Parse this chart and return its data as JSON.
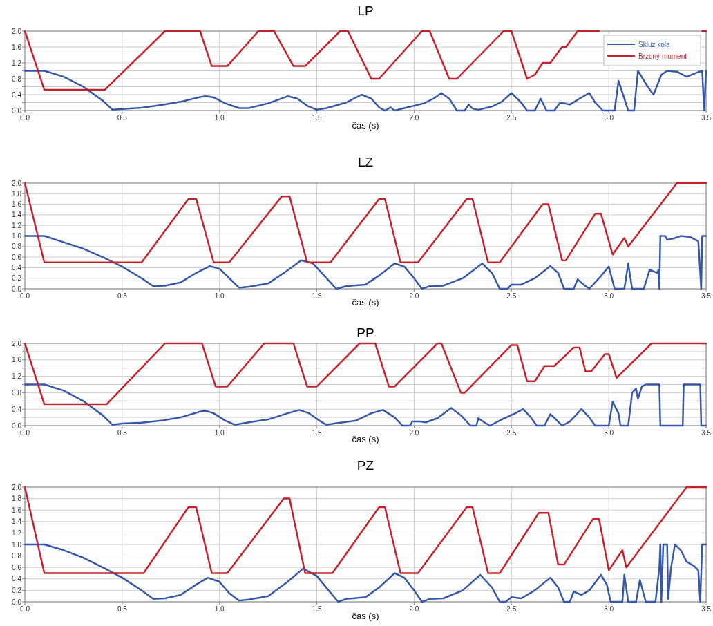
{
  "chart_data": [
    {
      "type": "line",
      "title": "LP",
      "xlabel": "čas (s)",
      "xlim": [
        0,
        3.5
      ],
      "xticks": [
        {
          "value": 0,
          "label": "0.0"
        },
        {
          "value": 0.5,
          "label": "0.5"
        },
        {
          "value": 1,
          "label": "1.0"
        },
        {
          "value": 1.5,
          "label": "1.5"
        },
        {
          "value": 2,
          "label": "2.0"
        },
        {
          "value": 2.5,
          "label": "2.5"
        },
        {
          "value": 3,
          "label": "3.0"
        },
        {
          "value": 3.5,
          "label": "3.5"
        }
      ],
      "ylim": [
        0,
        2
      ],
      "yticks": [
        {
          "value": 0,
          "label": "0.0"
        },
        {
          "value": 0.2,
          "label": null
        },
        {
          "value": 0.4,
          "label": "0.4"
        },
        {
          "value": 0.6,
          "label": null
        },
        {
          "value": 0.8,
          "label": "0.8"
        },
        {
          "value": 1,
          "label": null
        },
        {
          "value": 1.2,
          "label": "1.2"
        },
        {
          "value": 1.4,
          "label": null
        },
        {
          "value": 1.6,
          "label": "1.6"
        },
        {
          "value": 1.8,
          "label": null
        },
        {
          "value": 2,
          "label": "2.0"
        }
      ],
      "grid": true,
      "legend": "top right",
      "series": [
        {
          "name": "Skluz kola",
          "color": "#3558a8",
          "x": [
            0,
            0.1,
            0.2,
            0.3,
            0.4,
            0.45,
            0.5,
            0.6,
            0.7,
            0.8,
            0.9,
            0.93,
            0.97,
            1.03,
            1.1,
            1.15,
            1.25,
            1.35,
            1.4,
            1.45,
            1.5,
            1.55,
            1.65,
            1.73,
            1.78,
            1.82,
            1.85,
            1.88,
            1.9,
            1.95,
            2.05,
            2.1,
            2.14,
            2.18,
            2.22,
            2.26,
            2.28,
            2.3,
            2.33,
            2.4,
            2.45,
            2.5,
            2.55,
            2.58,
            2.62,
            2.65,
            2.68,
            2.72,
            2.75,
            2.8,
            2.85,
            2.9,
            2.93,
            2.97,
            3.03,
            3.05,
            3.08,
            3.1,
            3.13,
            3.15,
            3.2,
            3.23,
            3.27,
            3.3,
            3.35,
            3.4,
            3.45,
            3.48,
            3.49,
            3.5
          ],
          "values": [
            1,
            1,
            0.85,
            0.6,
            0.25,
            0.02,
            0.04,
            0.07,
            0.14,
            0.22,
            0.34,
            0.36,
            0.33,
            0.18,
            0.06,
            0.06,
            0.18,
            0.36,
            0.3,
            0.12,
            0.02,
            0.06,
            0.2,
            0.4,
            0.3,
            0.08,
            0,
            0.08,
            0,
            0.06,
            0.18,
            0.3,
            0.44,
            0.3,
            0,
            0,
            0.15,
            0.05,
            0.02,
            0.1,
            0.22,
            0.44,
            0.2,
            0,
            0,
            0.3,
            0,
            0,
            0.2,
            0.15,
            0.3,
            0.44,
            0.2,
            0,
            0,
            0.75,
            0.3,
            0,
            0,
            1,
            0.6,
            0.4,
            0.9,
            1,
            0.98,
            0.85,
            0.95,
            1,
            0,
            1
          ]
        },
        {
          "name": "Brzdný moment",
          "color": "#c8202a",
          "x": [
            0,
            0.1,
            0.41,
            0.72,
            0.9,
            0.96,
            1.04,
            1.2,
            1.28,
            1.38,
            1.44,
            1.62,
            1.66,
            1.78,
            1.82,
            2.04,
            2.08,
            2.18,
            2.22,
            2.46,
            2.5,
            2.58,
            2.62,
            2.66,
            2.7,
            2.76,
            2.78,
            2.84,
            2.88,
            2.95,
            2.97,
            3.48,
            3.5
          ],
          "values": [
            2,
            0.52,
            0.52,
            2,
            2,
            1.12,
            1.12,
            2,
            2,
            1.12,
            1.12,
            2,
            2,
            0.8,
            0.8,
            2,
            2,
            0.8,
            0.8,
            2,
            2,
            0.8,
            0.9,
            1.2,
            1.2,
            1.6,
            1.6,
            2,
            2,
            2,
            null,
            2,
            2
          ]
        }
      ]
    },
    {
      "type": "line",
      "title": "LZ",
      "xlabel": "čas (s)",
      "xlim": [
        0,
        3.5
      ],
      "xticks": [
        {
          "value": 0,
          "label": "0.0"
        },
        {
          "value": 0.5,
          "label": "0.5"
        },
        {
          "value": 1,
          "label": "1.0"
        },
        {
          "value": 1.5,
          "label": "1.5"
        },
        {
          "value": 2,
          "label": "2.0"
        },
        {
          "value": 2.5,
          "label": "2.5"
        },
        {
          "value": 3,
          "label": "3.0"
        },
        {
          "value": 3.5,
          "label": "3.5"
        }
      ],
      "ylim": [
        0,
        2
      ],
      "yticks": [
        {
          "value": 0,
          "label": "0.0"
        },
        {
          "value": 0.2,
          "label": "0.2"
        },
        {
          "value": 0.4,
          "label": "0.4"
        },
        {
          "value": 0.6,
          "label": "0.6"
        },
        {
          "value": 0.8,
          "label": "0.8"
        },
        {
          "value": 1,
          "label": "1.0"
        },
        {
          "value": 1.2,
          "label": "1.2"
        },
        {
          "value": 1.4,
          "label": "1.4"
        },
        {
          "value": 1.6,
          "label": "1.6"
        },
        {
          "value": 1.8,
          "label": "1.8"
        },
        {
          "value": 2,
          "label": "2.0"
        }
      ],
      "grid": true,
      "series": [
        {
          "color": "#3558a8",
          "x": [
            0,
            0.1,
            0.2,
            0.3,
            0.4,
            0.5,
            0.6,
            0.66,
            0.72,
            0.8,
            0.88,
            0.95,
            1,
            1.05,
            1.1,
            1.15,
            1.25,
            1.35,
            1.42,
            1.48,
            1.55,
            1.6,
            1.65,
            1.75,
            1.82,
            1.9,
            1.95,
            2,
            2.04,
            2.08,
            2.15,
            2.25,
            2.35,
            2.4,
            2.44,
            2.48,
            2.5,
            2.55,
            2.62,
            2.7,
            2.74,
            2.77,
            2.82,
            2.84,
            2.87,
            2.9,
            2.95,
            3,
            3.03,
            3.08,
            3.1,
            3.12,
            3.18,
            3.21,
            3.25,
            3.255,
            3.26,
            3.265,
            3.29,
            3.3,
            3.33,
            3.37,
            3.42,
            3.46,
            3.475,
            3.48,
            3.5
          ],
          "values": [
            1,
            1,
            0.88,
            0.76,
            0.6,
            0.42,
            0.2,
            0.05,
            0.06,
            0.12,
            0.3,
            0.43,
            0.38,
            0.2,
            0.02,
            0.04,
            0.1,
            0.35,
            0.54,
            0.48,
            0.2,
            0,
            0.05,
            0.08,
            0.25,
            0.48,
            0.42,
            0.2,
            0,
            0.05,
            0.06,
            0.2,
            0.48,
            0.3,
            0,
            0,
            0.08,
            0.08,
            0.2,
            0.43,
            0.3,
            0,
            0,
            0.18,
            0.08,
            0,
            0.2,
            0.42,
            0,
            0,
            0.48,
            0,
            0,
            0.36,
            0.3,
            0.36,
            0,
            1,
            1,
            0.93,
            0.95,
            1,
            0.98,
            0.9,
            0,
            1,
            1
          ]
        },
        {
          "color": "#c8202a",
          "x": [
            0,
            0.1,
            0.6,
            0.84,
            0.88,
            0.97,
            1.05,
            1.32,
            1.36,
            1.45,
            1.57,
            1.82,
            1.85,
            1.93,
            2.02,
            2.27,
            2.3,
            2.38,
            2.44,
            2.66,
            2.69,
            2.76,
            2.78,
            2.93,
            2.96,
            3.02,
            3.08,
            3.1,
            3.35,
            3.5
          ],
          "values": [
            2,
            0.5,
            0.5,
            1.7,
            1.7,
            0.5,
            0.5,
            1.75,
            1.75,
            0.5,
            0.5,
            1.7,
            1.7,
            0.5,
            0.5,
            1.7,
            1.7,
            0.5,
            0.5,
            1.6,
            1.6,
            0.54,
            0.54,
            1.42,
            1.42,
            0.65,
            0.96,
            0.8,
            2,
            2
          ]
        }
      ]
    },
    {
      "type": "line",
      "title": "PP",
      "xlabel": "čas (s)",
      "xlim": [
        0,
        3.5
      ],
      "xticks": [
        {
          "value": 0,
          "label": "0.0"
        },
        {
          "value": 0.5,
          "label": "0.5"
        },
        {
          "value": 1,
          "label": "1.0"
        },
        {
          "value": 1.5,
          "label": "1.5"
        },
        {
          "value": 2,
          "label": "2.0"
        },
        {
          "value": 2.5,
          "label": "2.5"
        },
        {
          "value": 3,
          "label": "3.0"
        },
        {
          "value": 3.5,
          "label": "3.5"
        }
      ],
      "ylim": [
        0,
        2
      ],
      "yticks": [
        {
          "value": 0,
          "label": "0.0"
        },
        {
          "value": 0.2,
          "label": null
        },
        {
          "value": 0.4,
          "label": "0.4"
        },
        {
          "value": 0.6,
          "label": null
        },
        {
          "value": 0.8,
          "label": "0.8"
        },
        {
          "value": 1,
          "label": null
        },
        {
          "value": 1.2,
          "label": "1.2"
        },
        {
          "value": 1.4,
          "label": null
        },
        {
          "value": 1.6,
          "label": "1.6"
        },
        {
          "value": 1.8,
          "label": null
        },
        {
          "value": 2,
          "label": "2.0"
        }
      ],
      "grid": true,
      "series": [
        {
          "color": "#3558a8",
          "x": [
            0,
            0.1,
            0.2,
            0.3,
            0.4,
            0.45,
            0.5,
            0.6,
            0.7,
            0.8,
            0.9,
            0.93,
            0.97,
            1.03,
            1.08,
            1.15,
            1.25,
            1.35,
            1.41,
            1.46,
            1.52,
            1.55,
            1.6,
            1.7,
            1.78,
            1.84,
            1.9,
            1.94,
            1.98,
            1.99,
            2.03,
            2.06,
            2.12,
            2.19,
            2.24,
            2.29,
            2.32,
            2.33,
            2.36,
            2.39,
            2.45,
            2.52,
            2.56,
            2.6,
            2.63,
            2.67,
            2.7,
            2.74,
            2.76,
            2.8,
            2.86,
            2.9,
            2.93,
            3,
            3.02,
            3.05,
            3.06,
            3.1,
            3.12,
            3.14,
            3.15,
            3.17,
            3.19,
            3.26,
            3.265,
            3.38,
            3.385,
            3.47,
            3.475,
            3.5
          ],
          "values": [
            1,
            1,
            0.85,
            0.6,
            0.25,
            0.02,
            0.05,
            0.07,
            0.12,
            0.2,
            0.34,
            0.36,
            0.3,
            0.12,
            0.02,
            0.08,
            0.15,
            0.3,
            0.38,
            0.3,
            0.1,
            0.02,
            0.06,
            0.12,
            0.3,
            0.38,
            0.2,
            0,
            0,
            0.1,
            0.1,
            0.08,
            0.18,
            0.43,
            0.25,
            0,
            0,
            0.18,
            0.08,
            0,
            0.15,
            0.3,
            0.4,
            0.2,
            0,
            0,
            0.28,
            0.1,
            0,
            0.1,
            0.4,
            0.2,
            0,
            0,
            0.58,
            0.3,
            0,
            0,
            0.8,
            0.9,
            0.65,
            0.95,
            1,
            1,
            0,
            0,
            1,
            1,
            0,
            0
          ]
        },
        {
          "color": "#c8202a",
          "x": [
            0,
            0.1,
            0.42,
            0.72,
            0.91,
            0.98,
            1.04,
            1.23,
            1.38,
            1.45,
            1.5,
            1.72,
            1.8,
            1.87,
            1.9,
            2.12,
            2.14,
            2.24,
            2.26,
            2.5,
            2.53,
            2.58,
            2.62,
            2.67,
            2.72,
            2.82,
            2.85,
            2.88,
            2.91,
            2.98,
            3,
            3.04,
            3.22,
            3.5
          ],
          "values": [
            2,
            0.52,
            0.52,
            2,
            2,
            0.95,
            0.95,
            2,
            2,
            0.95,
            0.95,
            2,
            2,
            0.95,
            0.95,
            2,
            2,
            0.8,
            0.8,
            1.96,
            1.96,
            1.08,
            1.08,
            1.45,
            1.45,
            1.9,
            1.9,
            1.32,
            1.32,
            1.74,
            1.74,
            1.16,
            2,
            2
          ]
        }
      ]
    },
    {
      "type": "line",
      "title": "PZ",
      "xlabel": "čas (s)",
      "xlim": [
        0,
        3.5
      ],
      "xticks": [
        {
          "value": 0,
          "label": "0.0"
        },
        {
          "value": 0.5,
          "label": "0.5"
        },
        {
          "value": 1,
          "label": "1.0"
        },
        {
          "value": 1.5,
          "label": "1.5"
        },
        {
          "value": 2,
          "label": "2.0"
        },
        {
          "value": 2.5,
          "label": "2.5"
        },
        {
          "value": 3,
          "label": "3.0"
        },
        {
          "value": 3.5,
          "label": "3.5"
        }
      ],
      "ylim": [
        0,
        2
      ],
      "yticks": [
        {
          "value": 0,
          "label": "0.0"
        },
        {
          "value": 0.2,
          "label": "0.2"
        },
        {
          "value": 0.4,
          "label": "0.4"
        },
        {
          "value": 0.6,
          "label": "0.6"
        },
        {
          "value": 0.8,
          "label": "0.8"
        },
        {
          "value": 1,
          "label": "1.0"
        },
        {
          "value": 1.2,
          "label": "1.2"
        },
        {
          "value": 1.4,
          "label": "1.4"
        },
        {
          "value": 1.6,
          "label": "1.6"
        },
        {
          "value": 1.8,
          "label": "1.8"
        },
        {
          "value": 2,
          "label": "2.0"
        }
      ],
      "grid": true,
      "series": [
        {
          "color": "#3558a8",
          "x": [
            0,
            0.1,
            0.2,
            0.3,
            0.4,
            0.5,
            0.6,
            0.66,
            0.72,
            0.8,
            0.88,
            0.94,
            1,
            1.05,
            1.1,
            1.15,
            1.25,
            1.35,
            1.43,
            1.5,
            1.56,
            1.61,
            1.65,
            1.75,
            1.82,
            1.9,
            1.95,
            2,
            2.04,
            2.08,
            2.15,
            2.25,
            2.34,
            2.4,
            2.44,
            2.47,
            2.5,
            2.55,
            2.62,
            2.7,
            2.74,
            2.77,
            2.8,
            2.82,
            2.86,
            2.9,
            2.96,
            2.99,
            3.01,
            3.07,
            3.08,
            3.1,
            3.14,
            3.16,
            3.19,
            3.24,
            3.26,
            3.265,
            3.27,
            3.28,
            3.3,
            3.305,
            3.32,
            3.34,
            3.37,
            3.4,
            3.44,
            3.46,
            3.47,
            3.48,
            3.5
          ],
          "values": [
            1,
            1,
            0.9,
            0.77,
            0.6,
            0.42,
            0.2,
            0.05,
            0.06,
            0.12,
            0.3,
            0.42,
            0.35,
            0.15,
            0.02,
            0.04,
            0.1,
            0.35,
            0.58,
            0.45,
            0.2,
            0,
            0.05,
            0.08,
            0.25,
            0.5,
            0.42,
            0.2,
            0,
            0.05,
            0.06,
            0.2,
            0.47,
            0.25,
            0,
            0,
            0.08,
            0.06,
            0.2,
            0.42,
            0.25,
            0,
            0,
            0.18,
            0.12,
            0.2,
            0.47,
            0.3,
            0,
            0,
            0.47,
            0,
            0,
            0.38,
            0,
            0,
            0.6,
            1,
            0,
            1,
            1,
            0.05,
            0.6,
            1,
            0.9,
            0.7,
            0.62,
            0.55,
            0,
            1,
            1
          ]
        },
        {
          "color": "#c8202a",
          "x": [
            0,
            0.1,
            0.61,
            0.84,
            0.88,
            0.96,
            1.04,
            1.33,
            1.36,
            1.44,
            1.58,
            1.82,
            1.85,
            1.93,
            2.02,
            2.27,
            2.3,
            2.38,
            2.44,
            2.64,
            2.69,
            2.74,
            2.77,
            2.92,
            2.95,
            3,
            3.07,
            3.09,
            3.4,
            3.5
          ],
          "values": [
            2,
            0.5,
            0.5,
            1.65,
            1.65,
            0.5,
            0.5,
            1.8,
            1.8,
            0.5,
            0.5,
            1.65,
            1.65,
            0.5,
            0.5,
            1.65,
            1.65,
            0.5,
            0.5,
            1.55,
            1.55,
            0.65,
            0.65,
            1.45,
            1.45,
            0.55,
            0.9,
            0.6,
            2,
            2
          ]
        }
      ]
    }
  ]
}
